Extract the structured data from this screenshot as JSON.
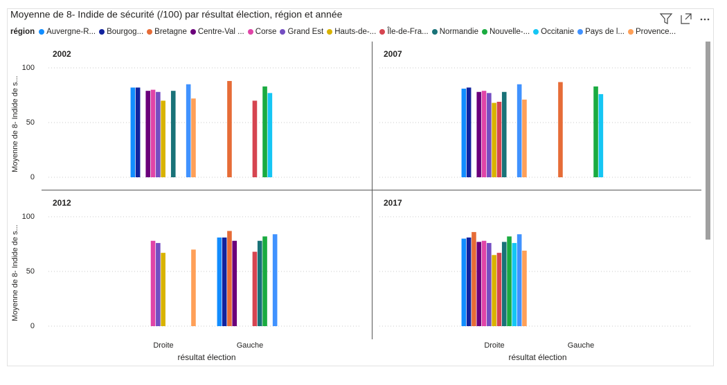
{
  "chart_data": {
    "type": "bar",
    "title": "Moyenne de 8- Indide de sécurité (/100) par résultat élection, région et année",
    "legend_title": "région",
    "y_label": "Moyenne de 8- Indide de s...",
    "x_label": "résultat élection",
    "facets": [
      "2002",
      "2007",
      "2012",
      "2017"
    ],
    "categories": [
      "Droite",
      "Gauche"
    ],
    "ylim": [
      0,
      110
    ],
    "yticks": [
      0,
      50,
      100
    ],
    "grid": true,
    "series": [
      {
        "name": "Auvergne-R...",
        "color": "#118DFF",
        "values": [
          [
            82,
            null
          ],
          [
            81,
            null
          ],
          [
            null,
            81
          ],
          [
            80,
            null
          ]
        ]
      },
      {
        "name": "Bourgog...",
        "color": "#12239E",
        "values": [
          [
            82,
            null
          ],
          [
            82,
            null
          ],
          [
            null,
            81
          ],
          [
            81,
            null
          ]
        ]
      },
      {
        "name": "Bretagne",
        "color": "#E66C37",
        "values": [
          [
            null,
            88
          ],
          [
            null,
            87
          ],
          [
            null,
            87
          ],
          [
            86,
            null
          ]
        ]
      },
      {
        "name": "Centre-Val ...",
        "color": "#6B007B",
        "values": [
          [
            79,
            null
          ],
          [
            78,
            null
          ],
          [
            null,
            78
          ],
          [
            77,
            null
          ]
        ]
      },
      {
        "name": "Corse",
        "color": "#E044A7",
        "values": [
          [
            80,
            null
          ],
          [
            79,
            null
          ],
          [
            78,
            null
          ],
          [
            78,
            null
          ]
        ]
      },
      {
        "name": "Grand Est",
        "color": "#744EC2",
        "values": [
          [
            78,
            null
          ],
          [
            77,
            null
          ],
          [
            76,
            null
          ],
          [
            76,
            null
          ]
        ]
      },
      {
        "name": "Hauts-de-...",
        "color": "#D9B300",
        "values": [
          [
            70,
            null
          ],
          [
            68,
            null
          ],
          [
            67,
            null
          ],
          [
            65,
            null
          ]
        ]
      },
      {
        "name": "Île-de-Fra...",
        "color": "#D64550",
        "values": [
          [
            null,
            70
          ],
          [
            69,
            null
          ],
          [
            null,
            68
          ],
          [
            67,
            null
          ]
        ]
      },
      {
        "name": "Normandie",
        "color": "#197278",
        "values": [
          [
            79,
            null
          ],
          [
            78,
            null
          ],
          [
            null,
            78
          ],
          [
            77,
            null
          ]
        ]
      },
      {
        "name": "Nouvelle-...",
        "color": "#1AAB40",
        "values": [
          [
            null,
            83
          ],
          [
            null,
            83
          ],
          [
            null,
            82
          ],
          [
            82,
            null
          ]
        ]
      },
      {
        "name": "Occitanie",
        "color": "#15C6F4",
        "values": [
          [
            null,
            77
          ],
          [
            null,
            76
          ],
          [
            null,
            null
          ],
          [
            76,
            null
          ]
        ]
      },
      {
        "name": "Pays de l...",
        "color": "#4092FF",
        "values": [
          [
            85,
            null
          ],
          [
            85,
            null
          ],
          [
            null,
            84
          ],
          [
            84,
            null
          ]
        ]
      },
      {
        "name": "Provence...",
        "color": "#FFA058",
        "values": [
          [
            72,
            null
          ],
          [
            71,
            null
          ],
          [
            70,
            null
          ],
          [
            69,
            null
          ]
        ]
      }
    ]
  }
}
